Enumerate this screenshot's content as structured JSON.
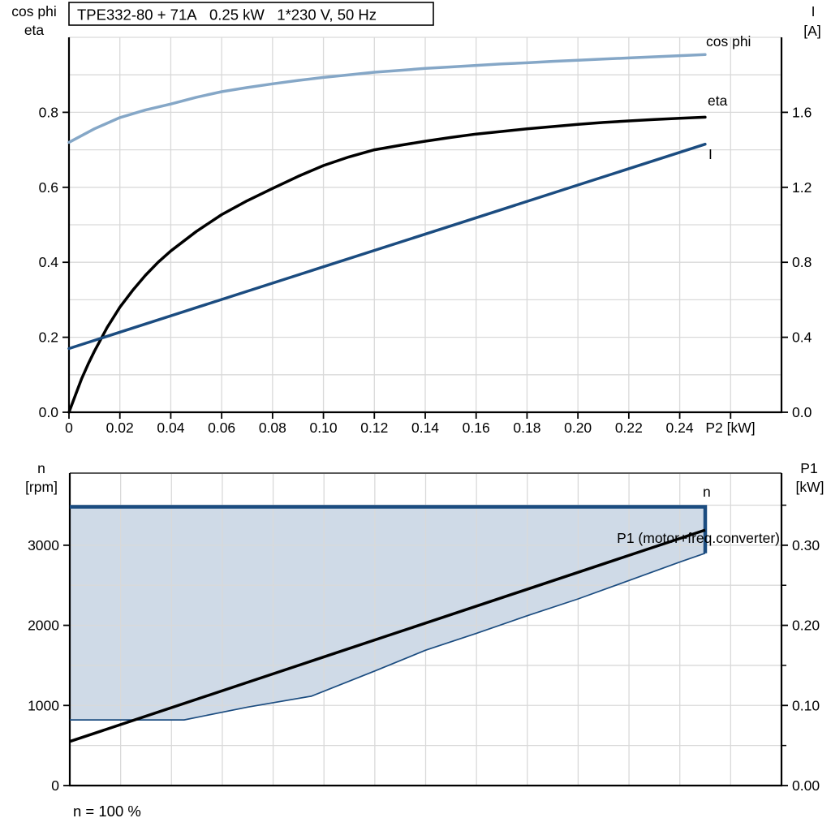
{
  "page": {
    "background": "#ffffff"
  },
  "colors": {
    "dark_blue": "#1b4c80",
    "light_blue": "#85a7c7",
    "black": "#000000",
    "fill": "#cfdae7",
    "grid": "#d9d9d9",
    "axis": "#000000",
    "frame": "#5a5a5a",
    "title_box_bg": "#ffffff"
  },
  "chart_data": [
    {
      "type": "line",
      "title": "TPE332-80 + 71A   0.25 kW   1*230 V, 50 Hz",
      "header_left": [
        "cos phi",
        "eta"
      ],
      "header_right": [
        "I",
        "[A]"
      ],
      "xlabel": "P2 [kW]",
      "x_range": [
        0,
        0.28
      ],
      "x_grid": [
        0.02,
        0.04,
        0.06,
        0.08,
        0.1,
        0.12,
        0.14,
        0.16,
        0.18,
        0.2,
        0.22,
        0.24,
        0.26
      ],
      "x_tick_values": [
        0,
        0.02,
        0.04,
        0.06,
        0.08,
        0.1,
        0.12,
        0.14,
        0.16,
        0.18,
        0.2,
        0.22,
        0.24,
        0.26
      ],
      "x_tick_labels": [
        "0",
        "0.02",
        "0.04",
        "0.06",
        "0.08",
        "0.10",
        "0.12",
        "0.14",
        "0.16",
        "0.18",
        "0.20",
        "0.22",
        "0.24",
        ""
      ],
      "left_axis": {
        "label": "cos phi / eta",
        "range": [
          0,
          1.0
        ],
        "grid": [
          0.1,
          0.2,
          0.3,
          0.4,
          0.5,
          0.6,
          0.7,
          0.8,
          0.9,
          1.0
        ],
        "tick_values": [
          0,
          0.2,
          0.4,
          0.6,
          0.8
        ],
        "tick_labels": [
          "0.0",
          "0.2",
          "0.4",
          "0.6",
          "0.8"
        ]
      },
      "right_axis": {
        "label": "I [A]",
        "range": [
          0,
          2.0
        ],
        "tick_values": [
          0,
          0.4,
          0.8,
          1.2,
          1.6
        ],
        "tick_labels": [
          "0.0",
          "0.4",
          "0.8",
          "1.2",
          "1.6"
        ]
      },
      "series": [
        {
          "name": "cos phi",
          "axis": "left",
          "color": "light_blue",
          "width": 3.5,
          "points": [
            [
              0,
              0.72
            ],
            [
              0.01,
              0.756
            ],
            [
              0.02,
              0.786
            ],
            [
              0.03,
              0.806
            ],
            [
              0.04,
              0.822
            ],
            [
              0.05,
              0.84
            ],
            [
              0.06,
              0.855
            ],
            [
              0.07,
              0.866
            ],
            [
              0.08,
              0.876
            ],
            [
              0.09,
              0.885
            ],
            [
              0.1,
              0.893
            ],
            [
              0.11,
              0.9
            ],
            [
              0.12,
              0.907
            ],
            [
              0.13,
              0.912
            ],
            [
              0.14,
              0.917
            ],
            [
              0.15,
              0.921
            ],
            [
              0.16,
              0.925
            ],
            [
              0.17,
              0.929
            ],
            [
              0.18,
              0.932
            ],
            [
              0.19,
              0.936
            ],
            [
              0.2,
              0.939
            ],
            [
              0.21,
              0.942
            ],
            [
              0.22,
              0.945
            ],
            [
              0.23,
              0.948
            ],
            [
              0.24,
              0.951
            ],
            [
              0.25,
              0.954
            ]
          ]
        },
        {
          "name": "eta",
          "axis": "left",
          "color": "black",
          "width": 3.5,
          "points": [
            [
              0,
              0
            ],
            [
              0.0025,
              0.045
            ],
            [
              0.005,
              0.09
            ],
            [
              0.0075,
              0.128
            ],
            [
              0.01,
              0.163
            ],
            [
              0.015,
              0.226
            ],
            [
              0.02,
              0.28
            ],
            [
              0.025,
              0.325
            ],
            [
              0.03,
              0.365
            ],
            [
              0.035,
              0.4
            ],
            [
              0.04,
              0.43
            ],
            [
              0.05,
              0.482
            ],
            [
              0.06,
              0.527
            ],
            [
              0.07,
              0.564
            ],
            [
              0.08,
              0.597
            ],
            [
              0.09,
              0.629
            ],
            [
              0.1,
              0.658
            ],
            [
              0.11,
              0.681
            ],
            [
              0.12,
              0.7
            ],
            [
              0.13,
              0.712
            ],
            [
              0.14,
              0.723
            ],
            [
              0.15,
              0.733
            ],
            [
              0.16,
              0.742
            ],
            [
              0.17,
              0.749
            ],
            [
              0.18,
              0.756
            ],
            [
              0.19,
              0.762
            ],
            [
              0.2,
              0.768
            ],
            [
              0.21,
              0.773
            ],
            [
              0.22,
              0.777
            ],
            [
              0.23,
              0.781
            ],
            [
              0.24,
              0.784
            ],
            [
              0.25,
              0.787
            ]
          ]
        },
        {
          "name": "I",
          "axis": "right",
          "color": "dark_blue",
          "width": 3.5,
          "points": [
            [
              0,
              0.34
            ],
            [
              0.05,
              0.558
            ],
            [
              0.1,
              0.776
            ],
            [
              0.15,
              0.994
            ],
            [
              0.2,
              1.212
            ],
            [
              0.25,
              1.43
            ]
          ]
        }
      ]
    },
    {
      "type": "line",
      "header_left": [
        "n",
        "[rpm]"
      ],
      "header_right": [
        "P1",
        "[kW]"
      ],
      "note": "n = 100 %",
      "x_range": [
        0,
        0.28
      ],
      "x_grid": [
        0.02,
        0.04,
        0.06,
        0.08,
        0.1,
        0.12,
        0.14,
        0.16,
        0.18,
        0.2,
        0.22,
        0.24,
        0.26
      ],
      "left_axis": {
        "label": "n [rpm]",
        "range": [
          0,
          3900
        ],
        "grid": [
          500,
          1000,
          1500,
          2000,
          2500,
          3000,
          3500
        ],
        "tick_values": [
          0,
          1000,
          2000,
          3000
        ],
        "tick_labels": [
          "0",
          "1000",
          "2000",
          "3000"
        ]
      },
      "right_axis": {
        "label": "P1 [kW]",
        "range": [
          0,
          0.39
        ],
        "tick_values": [
          0,
          0.1,
          0.2,
          0.3
        ],
        "tick_labels": [
          "0.00",
          "0.10",
          "0.20",
          "0.30"
        ],
        "minor_tick_values": [
          0.05,
          0.15,
          0.25,
          0.35
        ]
      },
      "series": [
        {
          "name": "n",
          "label": "n",
          "axis": "left",
          "color": "dark_blue",
          "width": 4.5,
          "points": [
            [
              0,
              3480
            ],
            [
              0.25,
              3480
            ],
            [
              0.25,
              2900
            ]
          ]
        },
        {
          "name": "n min",
          "axis": "left",
          "color": "dark_blue",
          "width": 1.7,
          "points": [
            [
              0,
              820
            ],
            [
              0.045,
              820
            ],
            [
              0.07,
              980
            ],
            [
              0.095,
              1115
            ],
            [
              0.12,
              1430
            ],
            [
              0.14,
              1690
            ],
            [
              0.16,
              1900
            ],
            [
              0.18,
              2120
            ],
            [
              0.2,
              2330
            ],
            [
              0.22,
              2560
            ],
            [
              0.24,
              2790
            ],
            [
              0.25,
              2900
            ]
          ]
        },
        {
          "name": "P1 (motor+freq.converter)",
          "label": "P1 (motor+freq.converter)",
          "axis": "right",
          "color": "black",
          "width": 3.5,
          "points": [
            [
              0,
              0.055
            ],
            [
              0.125,
              0.187
            ],
            [
              0.25,
              0.319
            ]
          ]
        }
      ],
      "fill_between": {
        "upper": 0,
        "lower": 1,
        "color": "fill"
      }
    }
  ]
}
